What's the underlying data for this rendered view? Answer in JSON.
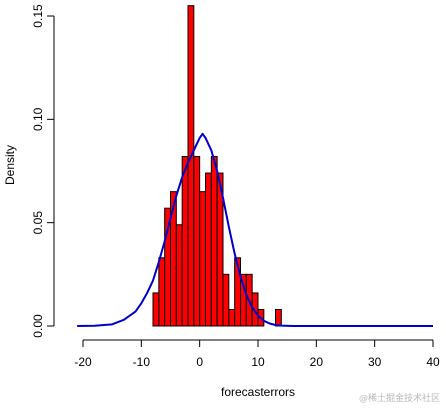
{
  "chart_data": {
    "type": "histogram",
    "title": "",
    "xlabel": "forecasterrors",
    "ylabel": "Density",
    "xlim": [
      -21,
      40
    ],
    "ylim": [
      0,
      0.16
    ],
    "x_ticks": [
      -20,
      -10,
      0,
      10,
      20,
      30,
      40
    ],
    "x_tick_labels": [
      "-20",
      "-10",
      "0",
      "10",
      "20",
      "30",
      "40"
    ],
    "y_ticks": [
      0,
      0.05,
      0.1,
      0.15
    ],
    "y_tick_labels": [
      "0.00",
      "0.05",
      "0.10",
      "0.15"
    ],
    "bar_fill": "#ff0000",
    "bar_stroke": "#000000",
    "curve_color": "#0000cc",
    "bins": [
      {
        "x0": -8,
        "x1": -7,
        "density": 0.016
      },
      {
        "x0": -7,
        "x1": -6,
        "density": 0.033
      },
      {
        "x0": -6,
        "x1": -5,
        "density": 0.057
      },
      {
        "x0": -5,
        "x1": -4,
        "density": 0.065
      },
      {
        "x0": -4,
        "x1": -3,
        "density": 0.049
      },
      {
        "x0": -3,
        "x1": -2,
        "density": 0.082
      },
      {
        "x0": -2,
        "x1": -1,
        "density": 0.155
      },
      {
        "x0": -1,
        "x1": 0,
        "density": 0.082
      },
      {
        "x0": 0,
        "x1": 1,
        "density": 0.065
      },
      {
        "x0": 1,
        "x1": 2,
        "density": 0.074
      },
      {
        "x0": 2,
        "x1": 3,
        "density": 0.082
      },
      {
        "x0": 3,
        "x1": 4,
        "density": 0.074
      },
      {
        "x0": 4,
        "x1": 5,
        "density": 0.025
      },
      {
        "x0": 5,
        "x1": 6,
        "density": 0.008
      },
      {
        "x0": 6,
        "x1": 7,
        "density": 0.033
      },
      {
        "x0": 7,
        "x1": 8,
        "density": 0.025
      },
      {
        "x0": 8,
        "x1": 9,
        "density": 0.025
      },
      {
        "x0": 9,
        "x1": 10,
        "density": 0.016
      },
      {
        "x0": 10,
        "x1": 11,
        "density": 0.008
      },
      {
        "x0": 11,
        "x1": 12,
        "density": 0
      },
      {
        "x0": 12,
        "x1": 13,
        "density": 0
      },
      {
        "x0": 13,
        "x1": 14,
        "density": 0.008
      }
    ],
    "curve": {
      "x": [
        -21,
        -18,
        -15,
        -13,
        -11,
        -10,
        -9,
        -8,
        -7,
        -6,
        -5,
        -4,
        -3,
        -2,
        -1,
        0,
        0.5,
        1,
        2,
        3,
        4,
        5,
        6,
        7,
        8,
        9,
        10,
        11,
        12,
        13,
        14,
        16,
        20,
        30,
        40
      ],
      "y": [
        0,
        0.0001,
        0.0008,
        0.003,
        0.007,
        0.011,
        0.016,
        0.022,
        0.031,
        0.041,
        0.052,
        0.063,
        0.072,
        0.079,
        0.085,
        0.091,
        0.093,
        0.091,
        0.085,
        0.075,
        0.062,
        0.048,
        0.035,
        0.024,
        0.015,
        0.009,
        0.005,
        0.0025,
        0.0012,
        0.0005,
        0.0002,
        0,
        0,
        0,
        0
      ]
    }
  },
  "watermark": {
    "text": "@稀土掘金技术社区"
  }
}
